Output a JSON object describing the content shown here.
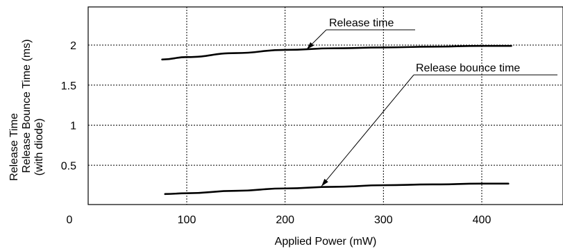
{
  "chart_data": {
    "type": "line",
    "xlabel": "Applied Power (mW)",
    "ylabel_lines": [
      "Release Time",
      "Release Bounce Time (ms)",
      "(with diode)"
    ],
    "xlim": [
      0,
      475
    ],
    "ylim": [
      0,
      2.5
    ],
    "x_ticks": [
      {
        "value": 0,
        "label": "0"
      },
      {
        "value": 100,
        "label": "100"
      },
      {
        "value": 200,
        "label": "200"
      },
      {
        "value": 300,
        "label": "300"
      },
      {
        "value": 400,
        "label": "400"
      }
    ],
    "y_ticks": [
      {
        "value": 0.5,
        "label": "0.5"
      },
      {
        "value": 1,
        "label": "1"
      },
      {
        "value": 1.5,
        "label": "1.5"
      },
      {
        "value": 2,
        "label": "2"
      }
    ],
    "grid": true,
    "series": [
      {
        "name": "Release time",
        "x": [
          75,
          100,
          150,
          200,
          250,
          300,
          350,
          400,
          430
        ],
        "y": [
          1.82,
          1.85,
          1.9,
          1.94,
          1.96,
          1.97,
          1.98,
          1.99,
          1.99
        ],
        "label_anchor": {
          "x": 222,
          "y": 1.93
        }
      },
      {
        "name": "Release bounce time",
        "x": [
          78,
          100,
          150,
          200,
          250,
          300,
          350,
          400,
          427
        ],
        "y": [
          0.14,
          0.15,
          0.18,
          0.21,
          0.23,
          0.25,
          0.26,
          0.27,
          0.27
        ],
        "label_anchor": {
          "x": 237,
          "y": 0.22
        }
      }
    ]
  }
}
